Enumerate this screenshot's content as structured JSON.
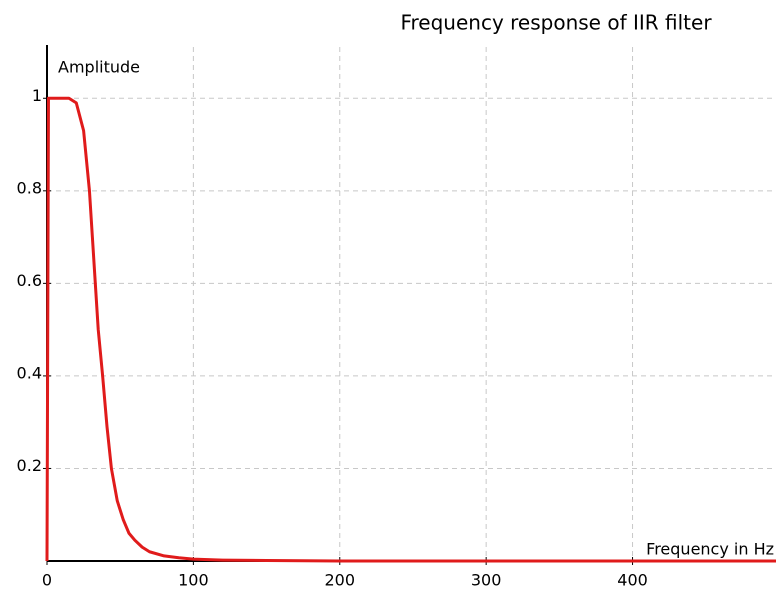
{
  "chart_data": {
    "type": "line",
    "title": "Frequency response of IIR filter",
    "x_label": "Frequency in Hz",
    "y_label": "Amplitude",
    "x": [
      0,
      1,
      10,
      15,
      20,
      25,
      29,
      31,
      33,
      35,
      38,
      41,
      44,
      48,
      52,
      56,
      60,
      65,
      70,
      80,
      90,
      100,
      120,
      150,
      200,
      300,
      400,
      498
    ],
    "series": [
      {
        "name": "Amplitude",
        "color": "#e01b1b",
        "values": [
          0,
          1,
          1,
          1,
          0.99,
          0.93,
          0.8,
          0.7,
          0.6,
          0.5,
          0.4,
          0.29,
          0.2,
          0.13,
          0.09,
          0.06,
          0.045,
          0.03,
          0.02,
          0.011,
          0.007,
          0.004,
          0.002,
          0.001,
          0,
          0,
          0,
          0
        ]
      }
    ],
    "xlim": [
      0,
      498
    ],
    "ylim": [
      0,
      1.1
    ],
    "xticks": [
      0,
      100,
      200,
      300,
      400
    ],
    "yticks": [
      0.2,
      0.4,
      0.6,
      0.8,
      1
    ],
    "grid": true
  }
}
